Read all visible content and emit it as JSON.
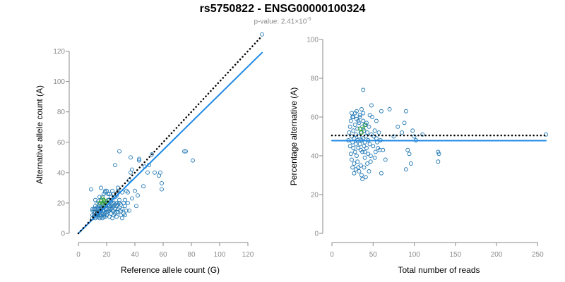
{
  "header": {
    "title": "rs5750822 - ENSG00000100324",
    "pvalue_prefix": "p-value: 2.41×10",
    "pvalue_exponent": "-5"
  },
  "colors": {
    "points": "#1f77b4",
    "points_overlap": "#2ca02c",
    "fit_line": "#1e88e5",
    "expected_line": "#000000",
    "axis": "#8a8a8a"
  },
  "chart_data": [
    {
      "type": "scatter",
      "xlabel": "Reference allele count (G)",
      "ylabel": "Alternative allele count (A)",
      "xlim": [
        0,
        130
      ],
      "ylim": [
        0,
        130
      ],
      "xticks": [
        "0",
        "20",
        "40",
        "60",
        "80",
        "100",
        "120"
      ],
      "yticks": [
        "0",
        "20",
        "40",
        "60",
        "80",
        "100",
        "120"
      ],
      "grid": false,
      "lines": [
        {
          "kind": "fit",
          "style": "solid",
          "from": [
            0,
            0
          ],
          "to": [
            130,
            119
          ]
        },
        {
          "kind": "expected",
          "style": "dotted",
          "from": [
            0,
            0
          ],
          "to": [
            130,
            130
          ]
        }
      ],
      "points": [
        [
          10,
          10
        ],
        [
          11,
          12
        ],
        [
          12,
          10
        ],
        [
          12,
          14
        ],
        [
          13,
          11
        ],
        [
          13,
          15
        ],
        [
          14,
          12
        ],
        [
          14,
          16
        ],
        [
          15,
          10
        ],
        [
          15,
          14
        ],
        [
          16,
          12
        ],
        [
          16,
          18
        ],
        [
          17,
          10
        ],
        [
          17,
          15
        ],
        [
          18,
          13
        ],
        [
          18,
          17
        ],
        [
          19,
          11
        ],
        [
          19,
          20
        ],
        [
          20,
          12
        ],
        [
          20,
          16
        ],
        [
          21,
          14
        ],
        [
          21,
          19
        ],
        [
          22,
          11
        ],
        [
          22,
          17
        ],
        [
          23,
          13
        ],
        [
          23,
          21
        ],
        [
          24,
          10
        ],
        [
          24,
          15
        ],
        [
          25,
          18
        ],
        [
          25,
          12
        ],
        [
          26,
          16
        ],
        [
          27,
          11
        ],
        [
          27,
          20
        ],
        [
          28,
          14
        ],
        [
          29,
          17
        ],
        [
          30,
          12
        ],
        [
          31,
          16
        ],
        [
          32,
          13
        ],
        [
          33,
          18
        ],
        [
          34,
          15
        ],
        [
          10,
          16
        ],
        [
          11,
          14
        ],
        [
          12,
          18
        ],
        [
          13,
          17
        ],
        [
          14,
          14
        ],
        [
          15,
          18
        ],
        [
          16,
          15
        ],
        [
          17,
          19
        ],
        [
          18,
          11
        ],
        [
          19,
          16
        ],
        [
          20,
          20
        ],
        [
          21,
          22
        ],
        [
          22,
          22
        ],
        [
          23,
          24
        ],
        [
          24,
          22
        ],
        [
          25,
          26
        ],
        [
          26,
          24
        ],
        [
          27,
          25
        ],
        [
          28,
          28
        ],
        [
          29,
          22
        ],
        [
          16,
          22
        ],
        [
          17,
          24
        ],
        [
          18,
          26
        ],
        [
          19,
          28
        ],
        [
          20,
          28
        ],
        [
          21,
          26
        ],
        [
          15,
          24
        ],
        [
          14,
          21
        ],
        [
          13,
          20
        ],
        [
          12,
          22
        ],
        [
          9,
          29
        ],
        [
          16,
          30
        ],
        [
          19,
          27
        ],
        [
          24,
          28
        ],
        [
          28,
          30
        ],
        [
          31,
          27
        ],
        [
          35,
          27
        ],
        [
          36,
          35
        ],
        [
          34,
          28
        ],
        [
          38,
          23
        ],
        [
          10,
          12
        ],
        [
          11,
          11
        ],
        [
          12,
          12
        ],
        [
          13,
          13
        ],
        [
          14,
          11
        ],
        [
          15,
          12
        ],
        [
          16,
          11
        ],
        [
          17,
          13
        ],
        [
          18,
          12
        ],
        [
          19,
          13
        ],
        [
          10,
          15
        ],
        [
          11,
          16
        ],
        [
          12,
          16
        ],
        [
          13,
          12
        ],
        [
          14,
          17
        ],
        [
          15,
          16
        ],
        [
          16,
          17
        ],
        [
          17,
          17
        ],
        [
          18,
          15
        ],
        [
          19,
          18
        ],
        [
          20,
          14
        ],
        [
          21,
          15
        ],
        [
          22,
          15
        ],
        [
          23,
          16
        ],
        [
          24,
          17
        ],
        [
          25,
          15
        ],
        [
          26,
          13
        ],
        [
          27,
          14
        ],
        [
          28,
          16
        ],
        [
          30,
          15
        ],
        [
          22,
          18
        ],
        [
          23,
          18
        ],
        [
          24,
          19
        ],
        [
          25,
          20
        ],
        [
          26,
          19
        ],
        [
          27,
          18
        ],
        [
          28,
          19
        ],
        [
          29,
          20
        ],
        [
          30,
          19
        ],
        [
          32,
          20
        ],
        [
          26,
          45
        ],
        [
          29,
          54
        ],
        [
          37,
          50
        ],
        [
          38,
          42
        ],
        [
          43,
          48
        ],
        [
          43,
          49
        ],
        [
          46,
          31
        ],
        [
          47,
          44
        ],
        [
          49,
          40
        ],
        [
          50,
          45
        ],
        [
          52,
          52
        ],
        [
          54,
          40
        ],
        [
          57,
          38
        ],
        [
          58,
          40
        ],
        [
          59,
          29
        ],
        [
          59,
          33
        ],
        [
          75,
          54
        ],
        [
          76,
          54
        ],
        [
          81,
          48
        ],
        [
          42,
          25
        ],
        [
          41,
          18
        ],
        [
          40,
          28
        ],
        [
          37,
          40
        ],
        [
          35,
          20
        ],
        [
          33,
          22
        ],
        [
          31,
          10
        ],
        [
          33,
          12
        ],
        [
          36,
          15
        ],
        [
          22,
          26
        ],
        [
          18,
          21
        ],
        [
          130,
          131
        ]
      ],
      "overlap_points": [
        [
          15,
          20
        ],
        [
          16,
          21
        ],
        [
          17,
          20
        ],
        [
          18,
          22
        ],
        [
          19,
          21
        ],
        [
          20,
          21
        ],
        [
          17,
          23
        ],
        [
          18,
          19
        ]
      ],
      "dark_points": [
        [
          13,
          13
        ],
        [
          27,
          26
        ]
      ]
    },
    {
      "type": "scatter",
      "xlabel": "Total number of reads",
      "ylabel": "Percentage alternative (A)",
      "xlim": [
        0,
        260
      ],
      "ylim": [
        0,
        100
      ],
      "xticks": [
        "0",
        "50",
        "100",
        "150",
        "200",
        "250"
      ],
      "yticks": [
        "0",
        "20",
        "40",
        "60",
        "80",
        "100"
      ],
      "grid": false,
      "lines": [
        {
          "kind": "fit",
          "style": "solid",
          "y": 47.8
        },
        {
          "kind": "expected",
          "style": "dotted",
          "y": 50.5
        }
      ],
      "points": [
        [
          20,
          48
        ],
        [
          21,
          52
        ],
        [
          22,
          45
        ],
        [
          22,
          55
        ],
        [
          23,
          41
        ],
        [
          23,
          58
        ],
        [
          24,
          50
        ],
        [
          24,
          38
        ],
        [
          25,
          47
        ],
        [
          25,
          60
        ],
        [
          26,
          44
        ],
        [
          26,
          53
        ],
        [
          27,
          49
        ],
        [
          27,
          36
        ],
        [
          28,
          56
        ],
        [
          28,
          42
        ],
        [
          29,
          51
        ],
        [
          29,
          46
        ],
        [
          30,
          59
        ],
        [
          30,
          40
        ],
        [
          31,
          48
        ],
        [
          31,
          54
        ],
        [
          32,
          44
        ],
        [
          32,
          34
        ],
        [
          33,
          50
        ],
        [
          33,
          57
        ],
        [
          34,
          46
        ],
        [
          34,
          61
        ],
        [
          35,
          43
        ],
        [
          35,
          52
        ],
        [
          36,
          48
        ],
        [
          36,
          30
        ],
        [
          37,
          55
        ],
        [
          37,
          42
        ],
        [
          38,
          49
        ],
        [
          38,
          62
        ],
        [
          39,
          45
        ],
        [
          39,
          53
        ],
        [
          40,
          47
        ],
        [
          40,
          39
        ],
        [
          41,
          56
        ],
        [
          41,
          50
        ],
        [
          42,
          44
        ],
        [
          43,
          52
        ],
        [
          44,
          48
        ],
        [
          45,
          55
        ],
        [
          46,
          46
        ],
        [
          47,
          40
        ],
        [
          48,
          51
        ],
        [
          49,
          60
        ],
        [
          50,
          45
        ],
        [
          51,
          50
        ],
        [
          52,
          53
        ],
        [
          53,
          42
        ],
        [
          54,
          49
        ],
        [
          55,
          47
        ],
        [
          56,
          44
        ],
        [
          57,
          52
        ],
        [
          58,
          43
        ],
        [
          59,
          48
        ],
        [
          24,
          62
        ],
        [
          26,
          60
        ],
        [
          28,
          62
        ],
        [
          30,
          63
        ],
        [
          32,
          58
        ],
        [
          34,
          60
        ],
        [
          36,
          64
        ],
        [
          38,
          58
        ],
        [
          25,
          34
        ],
        [
          27,
          31
        ],
        [
          29,
          33
        ],
        [
          31,
          37
        ],
        [
          33,
          32
        ],
        [
          35,
          35
        ],
        [
          37,
          28
        ],
        [
          39,
          34
        ],
        [
          41,
          29
        ],
        [
          43,
          36
        ],
        [
          45,
          32
        ],
        [
          47,
          37
        ],
        [
          38,
          74
        ],
        [
          48,
          66
        ],
        [
          46,
          61
        ],
        [
          60,
          63
        ],
        [
          70,
          64
        ],
        [
          90,
          63
        ],
        [
          88,
          57
        ],
        [
          92,
          43
        ],
        [
          94,
          41
        ],
        [
          90,
          33
        ],
        [
          96,
          36
        ],
        [
          98,
          53
        ],
        [
          100,
          50
        ],
        [
          102,
          48
        ],
        [
          110,
          51
        ],
        [
          129,
          42
        ],
        [
          130,
          41
        ],
        [
          129,
          37
        ],
        [
          60,
          31
        ],
        [
          62,
          43
        ],
        [
          65,
          38
        ],
        [
          75,
          50
        ],
        [
          80,
          55
        ],
        [
          85,
          52
        ],
        [
          54,
          58
        ],
        [
          52,
          39
        ],
        [
          44,
          41
        ],
        [
          42,
          57
        ],
        [
          40,
          42
        ],
        [
          260,
          51
        ]
      ],
      "overlap_points": [
        [
          34,
          54
        ],
        [
          36,
          52
        ],
        [
          38,
          54
        ],
        [
          40,
          56
        ]
      ]
    }
  ]
}
